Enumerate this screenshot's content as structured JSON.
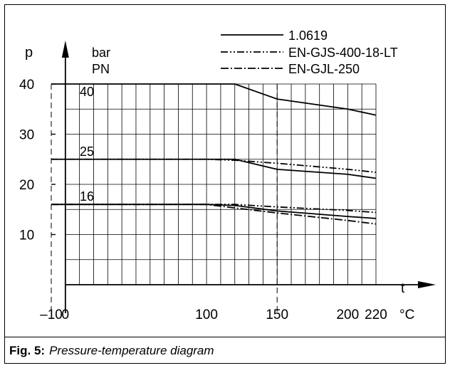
{
  "caption": {
    "label": "Fig. 5:",
    "text": "Pressure-temperature diagram"
  },
  "chart_data": {
    "type": "line",
    "title": "",
    "xlabel": "t",
    "x_unit": "°C",
    "ylabel": "p",
    "y_unit": "bar",
    "y_unit_2": "PN",
    "xlim": [
      -10,
      230
    ],
    "ylim": [
      0,
      40
    ],
    "x_gridlines": [
      0,
      10,
      20,
      30,
      40,
      50,
      60,
      70,
      80,
      90,
      100,
      110,
      120,
      130,
      140,
      150,
      160,
      170,
      180,
      190,
      200,
      210,
      220
    ],
    "y_gridlines": [
      0,
      5,
      10,
      15,
      20,
      25,
      30,
      35,
      40
    ],
    "x_ticks": [
      {
        "value": -10,
        "label": "–10"
      },
      {
        "value": 0,
        "label": "0"
      },
      {
        "value": 100,
        "label": "100"
      },
      {
        "value": 150,
        "label": "150"
      },
      {
        "value": 200,
        "label": "200"
      },
      {
        "value": 220,
        "label": "220"
      }
    ],
    "y_ticks": [
      {
        "value": 10,
        "label": "10"
      },
      {
        "value": 20,
        "label": "20"
      },
      {
        "value": 30,
        "label": "30"
      },
      {
        "value": 40,
        "label": "40"
      }
    ],
    "dashed_refs_x": [
      -10,
      150
    ],
    "pn_labels": [
      {
        "value": 40,
        "label": "40"
      },
      {
        "value": 25,
        "label": "25"
      },
      {
        "value": 16,
        "label": "16"
      }
    ],
    "legend": [
      {
        "name": "1.0619",
        "style": "solid"
      },
      {
        "name": "EN-GJS-400-18-LT",
        "style": "dashdotdot"
      },
      {
        "name": "EN-GJL-250",
        "style": "dashdot"
      }
    ],
    "legend_position": "top-right",
    "series": [
      {
        "style": "solid",
        "pn": 40,
        "x": [
          -10,
          120,
          150,
          200,
          220
        ],
        "y": [
          40,
          40,
          37,
          35,
          33.8
        ]
      },
      {
        "style": "solid",
        "pn": 25,
        "x": [
          -10,
          120,
          150,
          200,
          220
        ],
        "y": [
          25,
          25,
          23,
          22,
          21.2
        ]
      },
      {
        "style": "dashdotdot",
        "pn": 25,
        "x": [
          -10,
          100,
          120,
          150,
          200,
          220
        ],
        "y": [
          25,
          25,
          24.8,
          24.2,
          23,
          22.4
        ]
      },
      {
        "style": "solid",
        "pn": 16,
        "x": [
          -10,
          100,
          120,
          150,
          200,
          220
        ],
        "y": [
          16,
          16,
          15.8,
          14.7,
          13.6,
          13.2
        ]
      },
      {
        "style": "dashdotdot",
        "pn": 16,
        "x": [
          -10,
          100,
          120,
          150,
          200,
          220
        ],
        "y": [
          16,
          16,
          16,
          15.5,
          14.8,
          14.4
        ]
      },
      {
        "style": "dashdot",
        "pn": 16,
        "x": [
          -10,
          100,
          120,
          150,
          200,
          220
        ],
        "y": [
          16,
          16,
          15.3,
          14.3,
          12.8,
          12.1
        ]
      }
    ]
  }
}
